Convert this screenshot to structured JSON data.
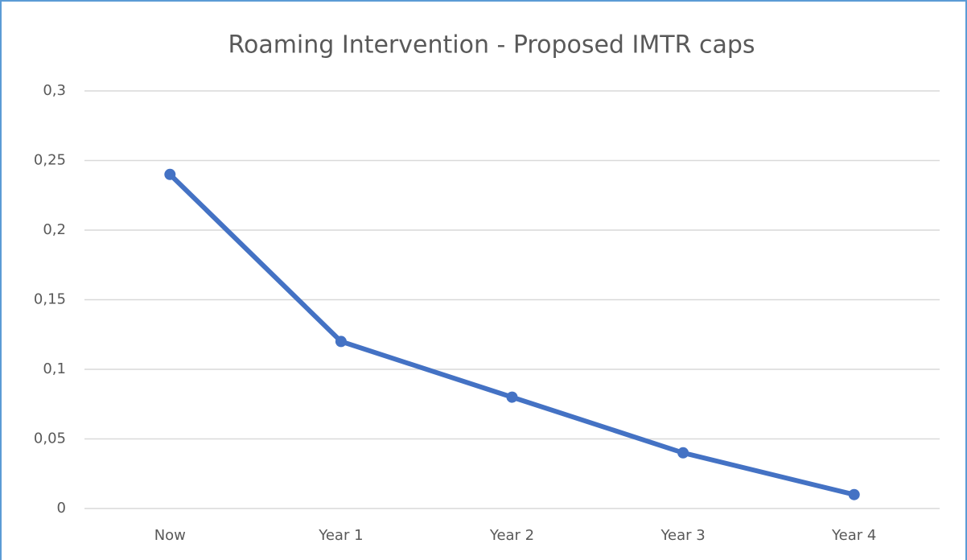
{
  "chart_data": {
    "type": "line",
    "title": "Roaming Intervention - Proposed IMTR caps",
    "categories": [
      "Now",
      "Year 1",
      "Year 2",
      "Year 3",
      "Year 4"
    ],
    "values": [
      0.24,
      0.12,
      0.08,
      0.04,
      0.01
    ],
    "color": "#4472c4",
    "ylim": [
      0,
      0.3
    ],
    "yticks": [
      0,
      {
        "value": 0.05,
        "label": "0,05"
      },
      {
        "value": 0.1,
        "label": "0,1"
      },
      {
        "value": 0.15,
        "label": "0,15"
      },
      {
        "value": 0.2,
        "label": "0,2"
      },
      {
        "value": 0.25,
        "label": "0,25"
      },
      {
        "value": 0.3,
        "label": "0,3"
      }
    ],
    "grid": true
  }
}
